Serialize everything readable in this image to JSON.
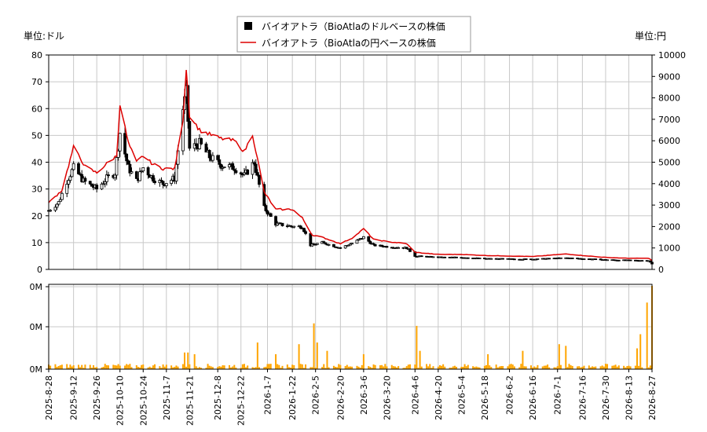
{
  "chart_data": {
    "type": "candlestick",
    "legend": {
      "placement": "top-center",
      "entries": [
        {
          "label": "バイオアトラ（BioAtlaのドルベースの株価",
          "marker": "square",
          "color": "#000000"
        },
        {
          "label": "バイオアトラ（BioAtlaの円ベースの株価",
          "marker": "line",
          "color": "#dd0000"
        }
      ]
    },
    "left_unit": "単位:ドル",
    "right_unit": "単位:円",
    "grid": true,
    "y_left": {
      "min": 0,
      "max": 80,
      "ticks": [
        "0",
        "10",
        "20",
        "30",
        "40",
        "50",
        "60",
        "70",
        "80"
      ]
    },
    "y_right": {
      "min": 0,
      "max": 10000,
      "ticks": [
        "0",
        "1000",
        "2000",
        "3000",
        "4000",
        "5000",
        "6000",
        "7000",
        "8000",
        "9000",
        "10000"
      ]
    },
    "volume_ticks": [
      "0M",
      "0M",
      "0M"
    ],
    "volume_color": "#ffa500",
    "x_ticks": [
      "2025-8-28",
      "2025-9-12",
      "2025-9-26",
      "2025-10-10",
      "2025-10-24",
      "2025-11-7",
      "2025-11-21",
      "2025-12-8",
      "2025-12-22",
      "2026-1-7",
      "2026-1-22",
      "2026-2-5",
      "2026-2-20",
      "2026-3-6",
      "2026-3-20",
      "2026-4-6",
      "2026-4-20",
      "2026-5-4",
      "2026-5-18",
      "2026-6-2",
      "2026-6-16",
      "2026-7-1",
      "2026-7-16",
      "2026-7-30",
      "2026-8-13",
      "2026-8-27"
    ],
    "usd_close_anchors": [
      [
        "2025-8-28",
        22
      ],
      [
        "2025-9-3",
        25
      ],
      [
        "2025-9-8",
        33
      ],
      [
        "2025-9-12",
        38
      ],
      [
        "2025-9-18",
        33
      ],
      [
        "2025-9-26",
        30
      ],
      [
        "2025-10-2",
        34
      ],
      [
        "2025-10-7",
        36
      ],
      [
        "2025-10-10",
        51
      ],
      [
        "2025-10-15",
        38
      ],
      [
        "2025-10-20",
        33
      ],
      [
        "2025-10-24",
        38
      ],
      [
        "2025-10-30",
        34
      ],
      [
        "2025-11-5",
        32
      ],
      [
        "2025-11-12",
        34
      ],
      [
        "2025-11-17",
        60
      ],
      [
        "2025-11-19",
        66
      ],
      [
        "2025-11-21",
        45
      ],
      [
        "2025-11-27",
        47
      ],
      [
        "2025-12-3",
        42
      ],
      [
        "2025-12-10",
        39
      ],
      [
        "2025-12-18",
        38
      ],
      [
        "2025-12-24",
        35
      ],
      [
        "2025-12-30",
        40
      ],
      [
        "2026-1-5",
        23
      ],
      [
        "2026-1-12",
        17
      ],
      [
        "2026-1-22",
        16
      ],
      [
        "2026-1-28",
        16
      ],
      [
        "2026-2-2",
        9
      ],
      [
        "2026-2-9",
        10
      ],
      [
        "2026-2-20",
        8
      ],
      [
        "2026-2-28",
        10
      ],
      [
        "2026-3-6",
        12
      ],
      [
        "2026-3-12",
        9
      ],
      [
        "2026-3-20",
        8.5
      ],
      [
        "2026-4-1",
        8
      ],
      [
        "2026-4-6",
        5
      ],
      [
        "2026-4-20",
        4.5
      ],
      [
        "2026-5-4",
        4.5
      ],
      [
        "2026-5-18",
        4
      ],
      [
        "2026-6-16",
        3.8
      ],
      [
        "2026-7-6",
        4.3
      ],
      [
        "2026-7-16",
        4
      ],
      [
        "2026-7-30",
        3.6
      ],
      [
        "2026-8-13",
        3.4
      ],
      [
        "2026-8-25",
        3.3
      ],
      [
        "2026-8-27",
        2.0
      ]
    ],
    "jpy_close_anchors": [
      [
        "2025-8-28",
        3100
      ],
      [
        "2025-9-5",
        3700
      ],
      [
        "2025-9-12",
        5700
      ],
      [
        "2025-9-19",
        4800
      ],
      [
        "2025-9-26",
        4500
      ],
      [
        "2025-10-3",
        5000
      ],
      [
        "2025-10-8",
        5300
      ],
      [
        "2025-10-10",
        7700
      ],
      [
        "2025-10-15",
        5900
      ],
      [
        "2025-10-20",
        5000
      ],
      [
        "2025-10-24",
        5300
      ],
      [
        "2025-10-30",
        4900
      ],
      [
        "2025-11-5",
        4700
      ],
      [
        "2025-11-12",
        4700
      ],
      [
        "2025-11-17",
        7000
      ],
      [
        "2025-11-19",
        9400
      ],
      [
        "2025-11-21",
        7200
      ],
      [
        "2025-11-27",
        6500
      ],
      [
        "2025-12-3",
        6300
      ],
      [
        "2025-12-10",
        6100
      ],
      [
        "2025-12-18",
        6000
      ],
      [
        "2025-12-24",
        5500
      ],
      [
        "2025-12-29",
        6300
      ],
      [
        "2026-1-5",
        3600
      ],
      [
        "2026-1-12",
        2800
      ],
      [
        "2026-1-22",
        2800
      ],
      [
        "2026-1-28",
        2400
      ],
      [
        "2026-2-3",
        1600
      ],
      [
        "2026-2-9",
        1500
      ],
      [
        "2026-2-20",
        1200
      ],
      [
        "2026-2-28",
        1500
      ],
      [
        "2026-3-6",
        1900
      ],
      [
        "2026-3-12",
        1400
      ],
      [
        "2026-3-20",
        1300
      ],
      [
        "2026-4-1",
        1200
      ],
      [
        "2026-4-6",
        800
      ],
      [
        "2026-4-20",
        700
      ],
      [
        "2026-5-4",
        700
      ],
      [
        "2026-5-18",
        650
      ],
      [
        "2026-6-16",
        600
      ],
      [
        "2026-7-6",
        720
      ],
      [
        "2026-7-16",
        650
      ],
      [
        "2026-7-30",
        560
      ],
      [
        "2026-8-13",
        520
      ],
      [
        "2026-8-25",
        520
      ],
      [
        "2026-8-27",
        420
      ]
    ],
    "volume_spikes": [
      [
        "2025-11-16",
        0.22
      ],
      [
        "2025-11-18",
        0.2
      ],
      [
        "2025-11-20",
        0.2
      ],
      [
        "2025-11-24",
        0.18
      ],
      [
        "2025-12-28",
        0.12
      ],
      [
        "2026-1-1",
        0.32
      ],
      [
        "2026-1-12",
        0.18
      ],
      [
        "2026-1-26",
        0.3
      ],
      [
        "2026-2-4",
        0.55
      ],
      [
        "2026-2-6",
        0.32
      ],
      [
        "2026-2-12",
        0.22
      ],
      [
        "2026-3-6",
        0.18
      ],
      [
        "2026-4-5",
        0.32
      ],
      [
        "2026-4-7",
        0.52
      ],
      [
        "2026-4-9",
        0.22
      ],
      [
        "2026-5-20",
        0.18
      ],
      [
        "2026-6-10",
        0.22
      ],
      [
        "2026-6-21",
        0.38
      ],
      [
        "2026-7-2",
        0.3
      ],
      [
        "2026-7-6",
        0.28
      ],
      [
        "2026-8-18",
        0.25
      ],
      [
        "2026-8-20",
        0.42
      ],
      [
        "2026-8-24",
        0.8
      ],
      [
        "2026-8-27",
        1.0
      ]
    ]
  }
}
